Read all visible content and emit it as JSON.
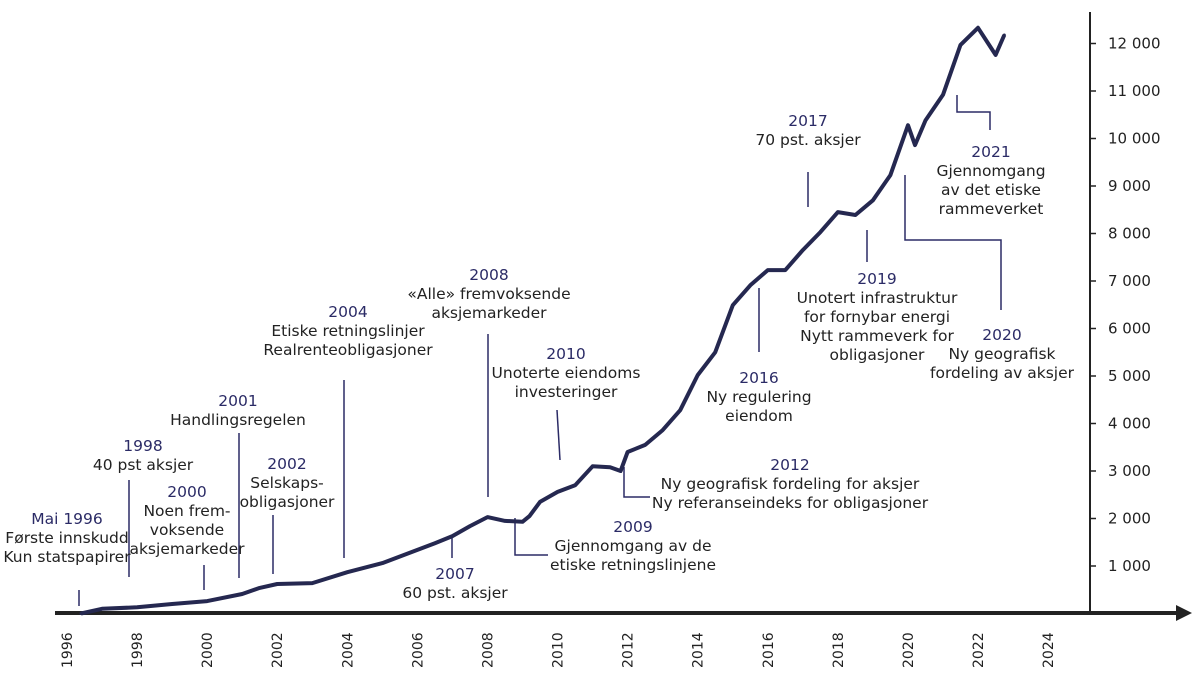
{
  "chart_data": {
    "type": "line",
    "title": "",
    "xlabel": "",
    "ylabel": "",
    "xlim": [
      1996,
      2026
    ],
    "ylim": [
      0,
      12600
    ],
    "grid": false,
    "line_color": "#252850",
    "x_ticks": [
      "1996",
      "1998",
      "2000",
      "2002",
      "2004",
      "2006",
      "2008",
      "2010",
      "2012",
      "2014",
      "2016",
      "2018",
      "2020",
      "2022",
      "2024"
    ],
    "y_ticks": [
      {
        "value": 1000,
        "label": "1 000"
      },
      {
        "value": 2000,
        "label": "2 000"
      },
      {
        "value": 3000,
        "label": "3 000"
      },
      {
        "value": 4000,
        "label": "4 000"
      },
      {
        "value": 5000,
        "label": "5 000"
      },
      {
        "value": 6000,
        "label": "6 000"
      },
      {
        "value": 7000,
        "label": "7 000"
      },
      {
        "value": 8000,
        "label": "8 000"
      },
      {
        "value": 9000,
        "label": "9 000"
      },
      {
        "value": 10000,
        "label": "10 000"
      },
      {
        "value": 11000,
        "label": "11 000"
      },
      {
        "value": 12000,
        "label": "12 000"
      }
    ],
    "series": [
      {
        "x": [
          1996.4,
          1997.0,
          1998.0,
          1999.0,
          2000.0,
          2001.0,
          2001.5,
          2002.0,
          2003.0,
          2004.0,
          2005.0,
          2006.0,
          2006.5,
          2007.0,
          2007.5,
          2008.0,
          2008.5,
          2009.0,
          2009.2,
          2009.5,
          2010.0,
          2010.5,
          2011.0,
          2011.5,
          2011.8,
          2012.0,
          2012.5,
          2013.0,
          2013.5,
          2014.0,
          2014.5,
          2015.0,
          2015.5,
          2016.0,
          2016.5,
          2017.0,
          2017.5,
          2018.0,
          2018.5,
          2019.0,
          2019.5,
          2020.0,
          2020.2,
          2020.5,
          2021.0,
          2021.5,
          2022.0,
          2022.5,
          2022.75
        ],
        "y": [
          0,
          100,
          130,
          200,
          260,
          410,
          540,
          620,
          640,
          870,
          1060,
          1340,
          1480,
          1630,
          1840,
          2030,
          1950,
          1930,
          2050,
          2350,
          2560,
          2700,
          3100,
          3080,
          3000,
          3400,
          3550,
          3860,
          4280,
          5020,
          5500,
          6490,
          6910,
          7230,
          7230,
          7650,
          8030,
          8450,
          8390,
          8700,
          9230,
          10280,
          9860,
          10380,
          10920,
          11970,
          12330,
          11760,
          12180
        ]
      }
    ],
    "annotations": [
      {
        "year": "Mai 1996",
        "lines": [
          "Første innskudd",
          "Kun statspapirer"
        ]
      },
      {
        "year": "1998",
        "lines": [
          "40 pst aksjer"
        ]
      },
      {
        "year": "2000",
        "lines": [
          "Noen frem-",
          "voksende",
          "aksjemarkeder"
        ]
      },
      {
        "year": "2001",
        "lines": [
          "Handlingsregelen"
        ]
      },
      {
        "year": "2002",
        "lines": [
          "Selskaps-",
          "obligasjoner"
        ]
      },
      {
        "year": "2004",
        "lines": [
          "Etiske retningslinjer",
          "Realrenteobligasjoner"
        ]
      },
      {
        "year": "2007",
        "lines": [
          "60 pst. aksjer"
        ]
      },
      {
        "year": "2008",
        "lines": [
          "«Alle» fremvoksende",
          "aksjemarkeder"
        ]
      },
      {
        "year": "2009",
        "lines": [
          "Gjennomgang av de",
          "etiske retningslinjene"
        ]
      },
      {
        "year": "2010",
        "lines": [
          "Unoterte eiendoms",
          "investeringer"
        ]
      },
      {
        "year": "2012",
        "lines": [
          "Ny geografisk fordeling for aksjer",
          "Ny referanseindeks for obligasjoner"
        ]
      },
      {
        "year": "2016",
        "lines": [
          "Ny regulering",
          "eiendom"
        ]
      },
      {
        "year": "2017",
        "lines": [
          "70 pst. aksjer"
        ]
      },
      {
        "year": "2019",
        "lines": [
          "Unotert infrastruktur",
          "for fornybar energi",
          "Nytt rammeverk for",
          "obligasjoner"
        ]
      },
      {
        "year": "2020",
        "lines": [
          "Ny geografisk",
          "fordeling av aksjer"
        ]
      },
      {
        "year": "2021",
        "lines": [
          "Gjennomgang",
          "av det etiske",
          "rammeverket"
        ]
      }
    ]
  }
}
